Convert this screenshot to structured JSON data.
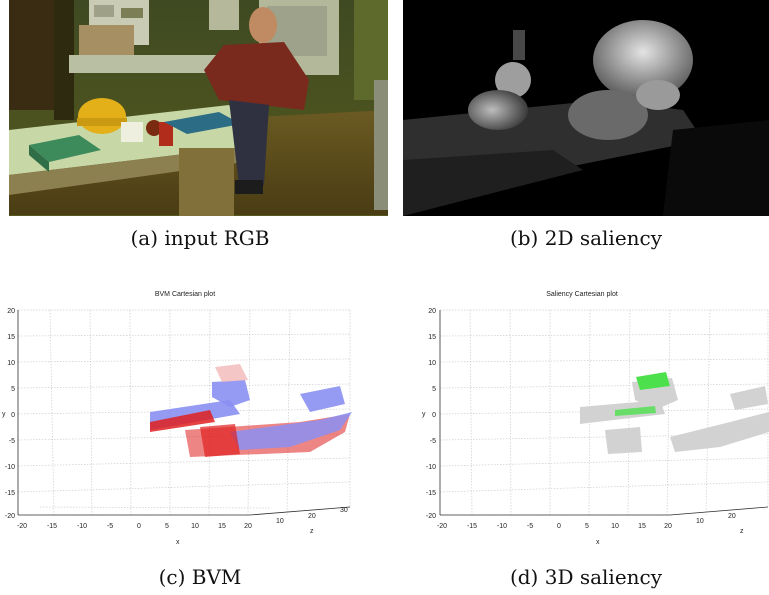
{
  "figure": {
    "captions": {
      "a": "(a) input RGB",
      "b": "(b) 2D saliency",
      "c": "(c) BVM",
      "d": "(d) 3D saliency"
    },
    "plots": {
      "c": {
        "title": "BVM Cartesian plot",
        "ylabel": "y",
        "xlabel": "x",
        "zlabel": "z",
        "y_ticks": [
          "20",
          "15",
          "10",
          "5",
          "0",
          "-5",
          "-10",
          "-15",
          "-20"
        ],
        "x_ticks": [
          "-20",
          "-15",
          "-10",
          "-5",
          "0",
          "5",
          "10",
          "15",
          "20"
        ],
        "z_ticks": [
          "10",
          "20",
          "30"
        ]
      },
      "d": {
        "title": "Saliency Cartesian plot",
        "ylabel": "y",
        "xlabel": "x",
        "zlabel": "z",
        "y_ticks": [
          "20",
          "15",
          "10",
          "5",
          "0",
          "-5",
          "-10",
          "-15",
          "-20"
        ],
        "x_ticks": [
          "-20",
          "-15",
          "-10",
          "-5",
          "0",
          "5",
          "10",
          "15",
          "20"
        ],
        "z_ticks": [
          "10",
          "20"
        ]
      }
    },
    "colors": {
      "bvm_blue": "#8a8ff2",
      "bvm_red": "#e02020",
      "saliency_gray": "#d2d2d2",
      "saliency_green": "#4de04d"
    }
  }
}
